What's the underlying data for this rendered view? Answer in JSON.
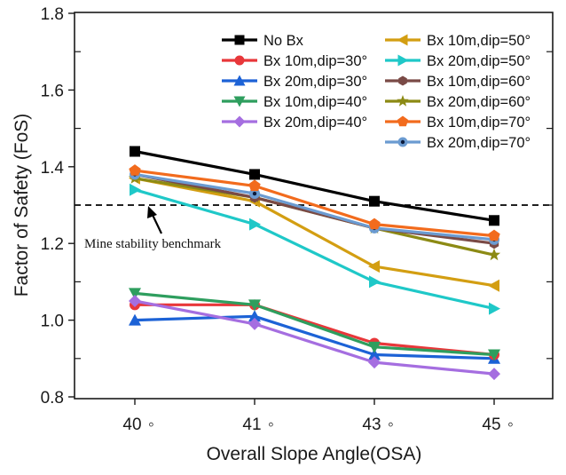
{
  "chart_data": {
    "type": "line",
    "title": "",
    "xlabel": "Overall Slope Angle(OSA)",
    "ylabel": "Factor of Safety (FoS)",
    "categories": [
      "40°",
      "41°",
      "43°",
      "45°"
    ],
    "x_tick_labels": [
      "40",
      "41",
      "43",
      "45"
    ],
    "x_tick_suffix": "◦",
    "ylim": [
      0.8,
      1.8
    ],
    "y_ticks": [
      "0.8",
      "1.0",
      "1.2",
      "1.4",
      "1.6",
      "1.8"
    ],
    "y_minor_ticks": [
      0.9,
      1.1,
      1.3,
      1.5,
      1.7
    ],
    "grid": false,
    "legend_position": "top-right",
    "legend_columns": 2,
    "reference_line": {
      "value": 1.3,
      "style": "dashed",
      "color": "#000000",
      "annotation": "Mine stability benchmark"
    },
    "series": [
      {
        "name": "No Bx",
        "color": "#000000",
        "marker": "square",
        "values": [
          1.44,
          1.38,
          1.31,
          1.26
        ]
      },
      {
        "name": "Bx 10m,dip=30°",
        "color": "#e8373a",
        "marker": "circle",
        "values": [
          1.04,
          1.04,
          0.94,
          0.91
        ]
      },
      {
        "name": "Bx 20m,dip=30°",
        "color": "#1c62d6",
        "marker": "triangle-up",
        "values": [
          1.0,
          1.01,
          0.91,
          0.9
        ]
      },
      {
        "name": "Bx 10m,dip=40°",
        "color": "#2e9e5e",
        "marker": "triangle-down",
        "values": [
          1.07,
          1.04,
          0.93,
          0.91
        ]
      },
      {
        "name": "Bx 20m,dip=40°",
        "color": "#a56ee0",
        "marker": "diamond",
        "values": [
          1.05,
          0.99,
          0.89,
          0.86
        ]
      },
      {
        "name": "Bx 10m,dip=50°",
        "color": "#d39e12",
        "marker": "triangle-left",
        "values": [
          1.37,
          1.31,
          1.14,
          1.09
        ]
      },
      {
        "name": "Bx 20m,dip=50°",
        "color": "#1fc8c8",
        "marker": "triangle-right",
        "values": [
          1.34,
          1.25,
          1.1,
          1.03
        ]
      },
      {
        "name": "Bx 10m,dip=60°",
        "color": "#7a4a46",
        "marker": "hexagon",
        "values": [
          1.38,
          1.32,
          1.24,
          1.2
        ]
      },
      {
        "name": "Bx 20m,dip=60°",
        "color": "#8c8a14",
        "marker": "star",
        "values": [
          1.37,
          1.32,
          1.24,
          1.17
        ]
      },
      {
        "name": "Bx 10m,dip=70°",
        "color": "#f26b1d",
        "marker": "pentagon",
        "values": [
          1.39,
          1.35,
          1.25,
          1.22
        ]
      },
      {
        "name": "Bx 20m,dip=70°",
        "color": "#6b9bd1",
        "marker": "circle-dot",
        "values": [
          1.38,
          1.33,
          1.24,
          1.21
        ]
      }
    ]
  }
}
